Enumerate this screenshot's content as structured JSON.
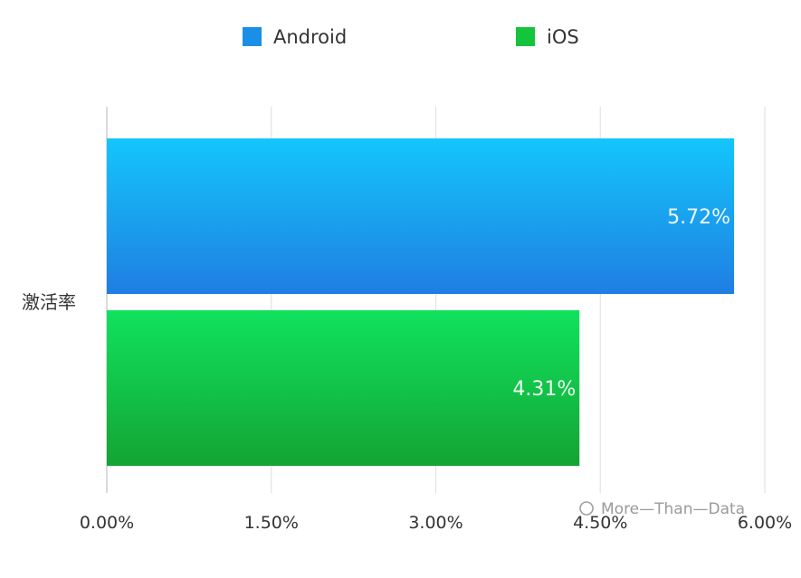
{
  "chart_data": {
    "type": "bar",
    "orientation": "horizontal",
    "categories": [
      "激活率"
    ],
    "series": [
      {
        "name": "Android",
        "values": [
          5.72
        ],
        "color": "#1a8fe6",
        "label": "5.72%"
      },
      {
        "name": "iOS",
        "values": [
          4.31
        ],
        "color": "#14c43c",
        "label": "4.31%"
      }
    ],
    "xlim": [
      0,
      6
    ],
    "xticks": [
      0,
      1.5,
      3,
      4.5,
      6
    ],
    "xtick_labels": [
      "0.00%",
      "1.50%",
      "3.00%",
      "4.50%",
      "6.00%"
    ],
    "grid": true,
    "legend_position": "top-center"
  },
  "watermark": "More—Than—Data"
}
